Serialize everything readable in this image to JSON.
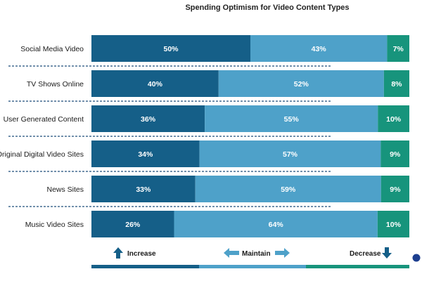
{
  "chart_data": {
    "type": "bar",
    "orientation": "horizontal",
    "stacked": "100%",
    "title": "Spending Optimism for Video Content Types",
    "categories": [
      "Social Media Video",
      "TV Shows Online",
      "User Generated Content",
      "Original Digital Video Sites",
      "News Sites",
      "Music Video Sites"
    ],
    "series": [
      {
        "name": "Increase",
        "values": [
          50,
          40,
          36,
          34,
          33,
          26
        ],
        "color": "#155f88"
      },
      {
        "name": "Maintain",
        "values": [
          43,
          52,
          55,
          57,
          59,
          64
        ],
        "color": "#4ea1c9"
      },
      {
        "name": "Decrease",
        "values": [
          7,
          8,
          10,
          9,
          9,
          10
        ],
        "color": "#17947c"
      }
    ],
    "value_suffix": "%",
    "legend_position": "bottom",
    "legend_icons": [
      "arrow-up-icon",
      "arrow-left-right-icon",
      "arrow-down-icon"
    ],
    "separator_color": "#1f4d7a"
  }
}
